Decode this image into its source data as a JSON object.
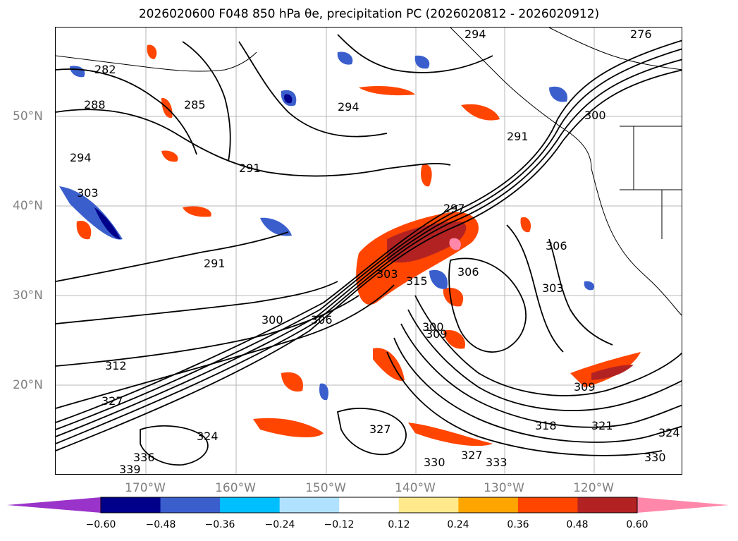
{
  "title": "2026020600 F048 850 hPa θe, precipitation PC (2026020812 - 2026020912)",
  "map": {
    "lat_labels": [
      "50°N",
      "40°N",
      "30°N",
      "20°N"
    ],
    "lon_labels": [
      "170°W",
      "160°W",
      "150°W",
      "140°W",
      "130°W",
      "120°W"
    ],
    "contour_labels": [
      "282",
      "285",
      "288",
      "291",
      "291",
      "291",
      "294",
      "294",
      "294",
      "297",
      "300",
      "300",
      "303",
      "303",
      "303",
      "306",
      "306",
      "306",
      "309",
      "309",
      "312",
      "315",
      "318",
      "321",
      "324",
      "324",
      "327",
      "327",
      "327",
      "330",
      "330",
      "333",
      "336",
      "339",
      "300",
      "276"
    ]
  },
  "colorbar": {
    "ticks": [
      "−0.60",
      "−0.48",
      "−0.36",
      "−0.24",
      "−0.12",
      "0.12",
      "0.24",
      "0.36",
      "0.48",
      "0.60"
    ],
    "colors": [
      "#9a33c9",
      "#00008b",
      "#3a5fcd",
      "#00bfff",
      "#b0e2ff",
      "#ffffff",
      "#ffe98a",
      "#ffa500",
      "#ff4500",
      "#b22222",
      "#ff88aa"
    ]
  }
}
